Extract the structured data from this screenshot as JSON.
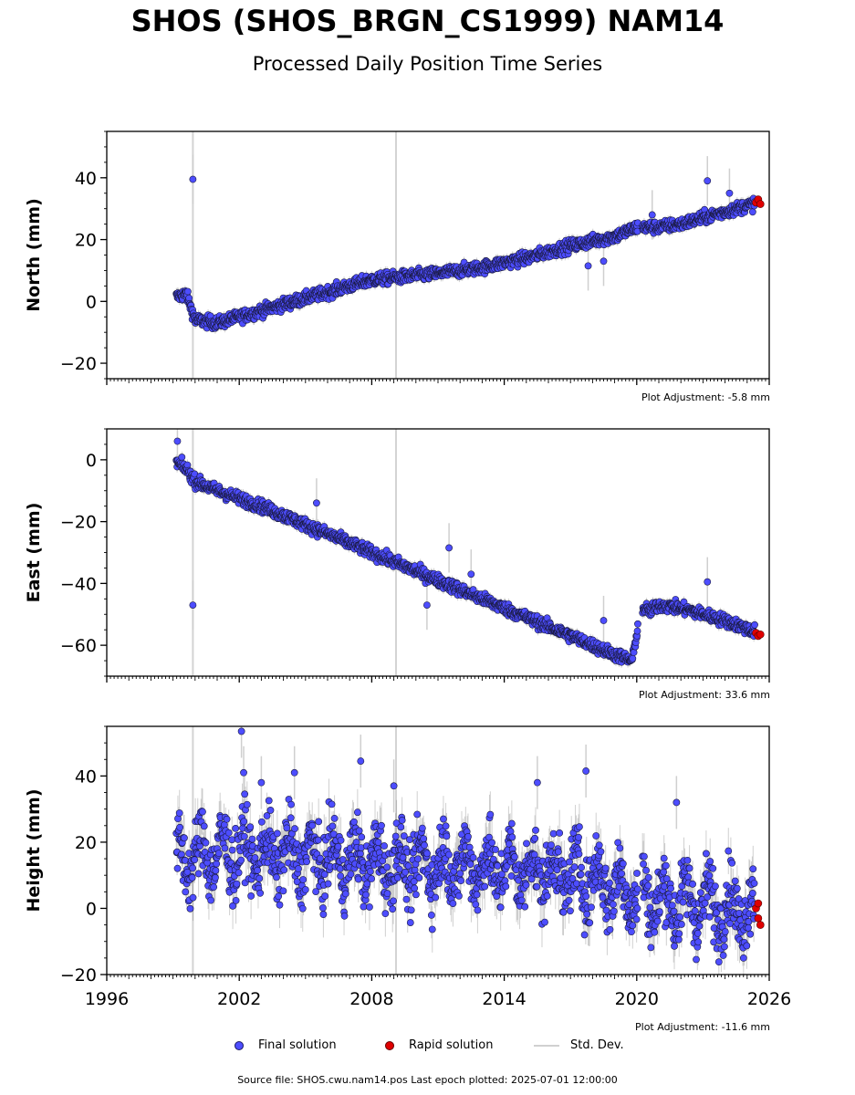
{
  "chart_data": {
    "type": "scatter",
    "title": "SHOS (SHOS_BRGN_CS1999) NAM14",
    "subtitle": "Processed Daily Position Time Series",
    "x_ticks": [
      "1996",
      "2002",
      "2008",
      "2014",
      "2020",
      "2026"
    ],
    "xlim": [
      1996,
      2026
    ],
    "vertical_lines": [
      1999.9,
      2009.1
    ],
    "panels": [
      {
        "ylabel": "North (mm)",
        "ylim": [
          -25,
          55
        ],
        "yticks": [
          -20,
          0,
          20,
          40
        ],
        "adjustment": "Plot Adjustment: -5.8 mm",
        "final_trend": [
          [
            1999.2,
            1.5
          ],
          [
            1999.6,
            2.5
          ],
          [
            2000.0,
            -6
          ],
          [
            2001.0,
            -7
          ],
          [
            2003.0,
            -3
          ],
          [
            2005.0,
            1
          ],
          [
            2007.0,
            5
          ],
          [
            2008.0,
            7
          ],
          [
            2009.5,
            8
          ],
          [
            2011.0,
            9
          ],
          [
            2013.0,
            11
          ],
          [
            2015.0,
            14
          ],
          [
            2017.0,
            18
          ],
          [
            2019.0,
            21
          ],
          [
            2020.0,
            24
          ],
          [
            2021.0,
            24
          ],
          [
            2022.0,
            25
          ],
          [
            2023.0,
            27
          ],
          [
            2025.5,
            32
          ]
        ],
        "outliers": [
          [
            1999.9,
            39.5
          ],
          [
            2023.2,
            39
          ],
          [
            2024.2,
            35
          ],
          [
            2020.7,
            28
          ],
          [
            2017.8,
            11.5
          ],
          [
            2018.5,
            13
          ]
        ],
        "rapid": [
          [
            2025.4,
            32
          ],
          [
            2025.5,
            33
          ],
          [
            2025.6,
            31.5
          ]
        ]
      },
      {
        "ylabel": "East (mm)",
        "ylim": [
          -70,
          10
        ],
        "yticks": [
          -60,
          -40,
          -20,
          0
        ],
        "adjustment": "Plot Adjustment: 33.6 mm",
        "final_trend": [
          [
            1999.2,
            -1
          ],
          [
            1999.6,
            -3
          ],
          [
            2000.0,
            -7
          ],
          [
            2001.0,
            -10
          ],
          [
            2003.0,
            -15
          ],
          [
            2005.0,
            -21
          ],
          [
            2007.0,
            -27
          ],
          [
            2009.0,
            -33
          ],
          [
            2011.0,
            -39
          ],
          [
            2013.0,
            -45
          ],
          [
            2015.0,
            -51
          ],
          [
            2017.0,
            -57
          ],
          [
            2019.0,
            -63
          ],
          [
            2019.8,
            -65
          ],
          [
            2020.0,
            -56
          ],
          [
            2020.3,
            -48
          ],
          [
            2020.6,
            -49
          ],
          [
            2021.0,
            -47
          ],
          [
            2022.0,
            -48
          ],
          [
            2023.0,
            -50
          ],
          [
            2024.0,
            -52
          ],
          [
            2025.5,
            -56
          ]
        ],
        "outliers": [
          [
            1999.2,
            6
          ],
          [
            1999.9,
            -47
          ],
          [
            2010.5,
            -47
          ],
          [
            2011.5,
            -28.5
          ],
          [
            2012.5,
            -37
          ],
          [
            2018.5,
            -52
          ],
          [
            2023.2,
            -39.5
          ],
          [
            2005.5,
            -14
          ]
        ],
        "rapid": [
          [
            2025.4,
            -56
          ],
          [
            2025.5,
            -57
          ],
          [
            2025.6,
            -56.5
          ]
        ]
      },
      {
        "ylabel": "Height (mm)",
        "ylim": [
          -20,
          55
        ],
        "yticks": [
          -20,
          0,
          20,
          40
        ],
        "adjustment": "Plot Adjustment: -11.6 mm",
        "final_trend": [
          [
            1999.2,
            14
          ],
          [
            2000.0,
            16
          ],
          [
            2002.0,
            17
          ],
          [
            2004.0,
            16
          ],
          [
            2006.0,
            15
          ],
          [
            2008.0,
            14
          ],
          [
            2010.0,
            13
          ],
          [
            2012.0,
            13
          ],
          [
            2014.0,
            12
          ],
          [
            2016.0,
            11
          ],
          [
            2018.0,
            9
          ],
          [
            2019.8,
            5
          ],
          [
            2020.5,
            3
          ],
          [
            2022.0,
            2
          ],
          [
            2023.5,
            1
          ],
          [
            2025.5,
            -1
          ]
        ],
        "spread": 9,
        "outliers": [
          [
            2002.1,
            53.5
          ],
          [
            2002.2,
            41
          ],
          [
            2007.5,
            44.5
          ],
          [
            2017.7,
            41.5
          ],
          [
            2009.0,
            37
          ],
          [
            2015.5,
            38
          ],
          [
            2021.8,
            32
          ],
          [
            2004.5,
            41
          ],
          [
            2003.0,
            38
          ]
        ],
        "rapid": [
          [
            2025.4,
            0
          ],
          [
            2025.5,
            -3
          ],
          [
            2025.6,
            -5
          ],
          [
            2025.5,
            1.5
          ]
        ]
      }
    ],
    "legend": [
      "Final solution",
      "Rapid solution",
      "Std. Dev."
    ],
    "colors": {
      "final": "#4d4dff",
      "rapid": "#e00000",
      "stddev": "#d0d0d0"
    }
  },
  "footer": "Source file: SHOS.cwu.nam14.pos  Last epoch plotted: 2025-07-01 12:00:00"
}
